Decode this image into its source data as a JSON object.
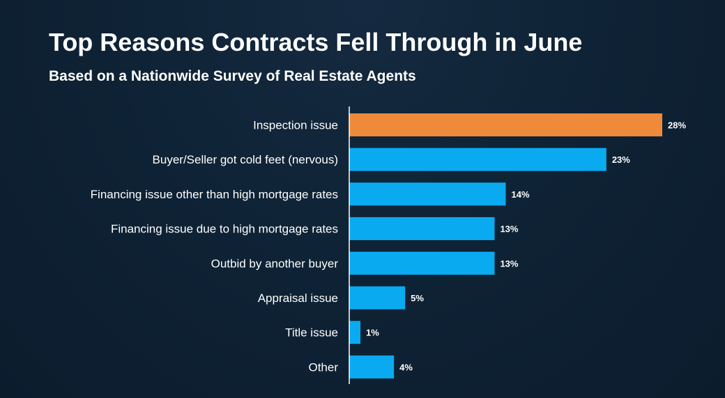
{
  "header": {
    "title": "Top Reasons Contracts Fell Through in June",
    "subtitle": "Based on a Nationwide Survey of Real Estate Agents"
  },
  "colors": {
    "highlight": "#ef8a3a",
    "bar": "#0aaaf0",
    "axis": "#ffffff",
    "text": "#ffffff"
  },
  "chart_data": {
    "type": "bar",
    "orientation": "horizontal",
    "title": "Top Reasons Contracts Fell Through in June",
    "subtitle": "Based on a Nationwide Survey of Real Estate Agents",
    "categories": [
      "Inspection issue",
      "Buyer/Seller got cold feet (nervous)",
      "Financing issue other than high mortgage rates",
      "Financing issue due to high mortgage rates",
      "Outbid by another buyer",
      "Appraisal issue",
      "Title issue",
      "Other"
    ],
    "values": [
      28,
      23,
      14,
      13,
      13,
      5,
      1,
      4
    ],
    "value_labels": [
      "28%",
      "23%",
      "14%",
      "13%",
      "13%",
      "5%",
      "1%",
      "4%"
    ],
    "highlighted_index": 0,
    "xlabel": "",
    "ylabel": "",
    "xlim": [
      0,
      28
    ],
    "grid": false,
    "legend": "none"
  }
}
